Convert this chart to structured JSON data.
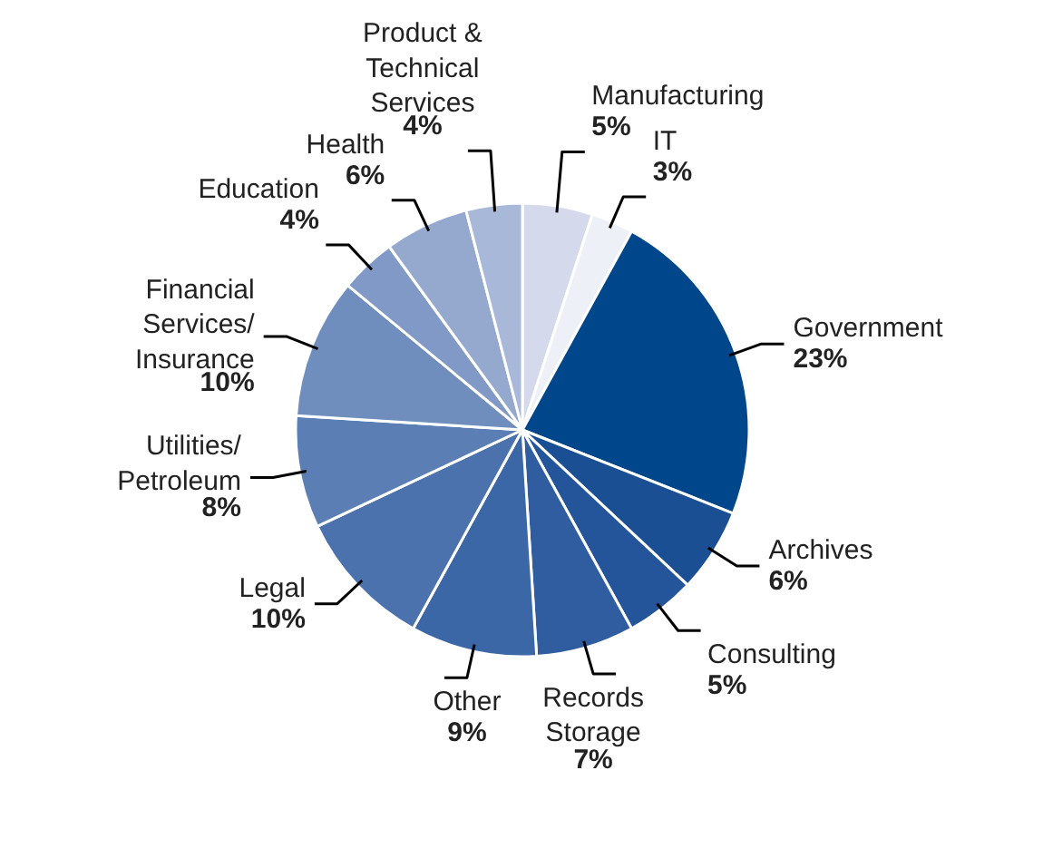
{
  "chart_data": {
    "type": "pie",
    "categories": [
      "Manufacturing",
      "IT",
      "Government",
      "Archives",
      "Consulting",
      "Records\nStorage",
      "Other",
      "Legal",
      "Utilities/\nPetroleum",
      "Financial\nServices/\nInsurance",
      "Education",
      "Health",
      "Product &\nTechnical\nServices"
    ],
    "values": [
      5,
      3,
      23,
      6,
      5,
      7,
      9,
      10,
      8,
      10,
      4,
      6,
      4
    ],
    "value_labels": [
      "5%",
      "3%",
      "23%",
      "6%",
      "5%",
      "7%",
      "9%",
      "10%",
      "8%",
      "10%",
      "4%",
      "6%",
      "4%"
    ],
    "colors": [
      "#d4d9ec",
      "#eef0f7",
      "#00468b",
      "#1b4f94",
      "#24549a",
      "#2f5d9f",
      "#3c67a6",
      "#4b72ad",
      "#5b7fb5",
      "#6f8ebe",
      "#8199c6",
      "#95a9cf",
      "#a8b8d8"
    ]
  }
}
